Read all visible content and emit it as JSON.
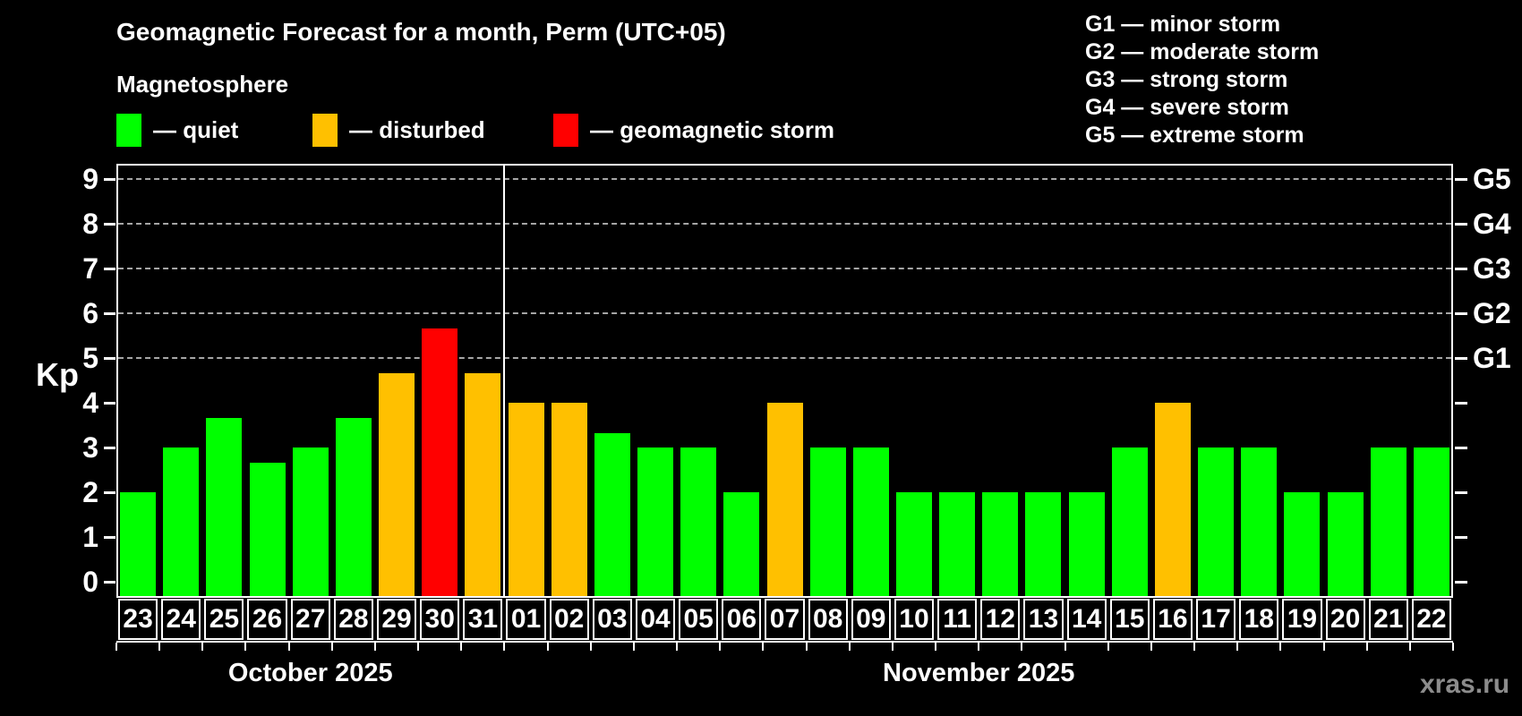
{
  "title": "Geomagnetic Forecast for a month, Perm (UTC+05)",
  "subtitle": "Magnetosphere",
  "status_legend": [
    {
      "key": "quiet",
      "label": "— quiet"
    },
    {
      "key": "disturbed",
      "label": "— disturbed"
    },
    {
      "key": "storm",
      "label": "— geomagnetic storm"
    }
  ],
  "storm_scale_legend": [
    "G1 — minor storm",
    "G2 — moderate storm",
    "G3 — strong storm",
    "G4 — severe storm",
    "G5 — extreme storm"
  ],
  "watermark": "xras.ru",
  "colors": {
    "quiet": "#00ff00",
    "disturbed": "#ffc000",
    "storm": "#ff0000",
    "gridline": "#a6a6a6",
    "axis": "#ffffff",
    "watermark": "#8c8c8c"
  },
  "chart_data": {
    "type": "bar",
    "title": "Geomagnetic Forecast for a month, Perm (UTC+05)",
    "ylabel": "Kp",
    "ylim": [
      0,
      9
    ],
    "y_ticks": [
      0,
      1,
      2,
      3,
      4,
      5,
      6,
      7,
      8,
      9
    ],
    "gridlines_kp": [
      5,
      6,
      7,
      8,
      9
    ],
    "grid_style": "dashed horizontal lines at storm levels only",
    "legend_position": "top",
    "right_axis": [
      {
        "kp": 5,
        "label": "G1"
      },
      {
        "kp": 6,
        "label": "G2"
      },
      {
        "kp": 7,
        "label": "G3"
      },
      {
        "kp": 8,
        "label": "G4"
      },
      {
        "kp": 9,
        "label": "G5"
      }
    ],
    "months": [
      {
        "label": "October 2025",
        "days": 9
      },
      {
        "label": "November 2025",
        "days": 22
      }
    ],
    "categories": [
      "23",
      "24",
      "25",
      "26",
      "27",
      "28",
      "29",
      "30",
      "31",
      "01",
      "02",
      "03",
      "04",
      "05",
      "06",
      "07",
      "08",
      "09",
      "10",
      "11",
      "12",
      "13",
      "14",
      "15",
      "16",
      "17",
      "18",
      "19",
      "20",
      "21",
      "22"
    ],
    "values": [
      2,
      3,
      3.67,
      2.67,
      3,
      3.67,
      4.67,
      5.67,
      4.67,
      4,
      4,
      3.33,
      3,
      3,
      2,
      4,
      3,
      3,
      2,
      2,
      2,
      2,
      2,
      3,
      4,
      3,
      3,
      2,
      2,
      3,
      3
    ],
    "statuses": [
      "quiet",
      "quiet",
      "quiet",
      "quiet",
      "quiet",
      "quiet",
      "disturbed",
      "storm",
      "disturbed",
      "disturbed",
      "disturbed",
      "quiet",
      "quiet",
      "quiet",
      "quiet",
      "disturbed",
      "quiet",
      "quiet",
      "quiet",
      "quiet",
      "quiet",
      "quiet",
      "quiet",
      "quiet",
      "disturbed",
      "quiet",
      "quiet",
      "quiet",
      "quiet",
      "quiet",
      "quiet"
    ]
  }
}
